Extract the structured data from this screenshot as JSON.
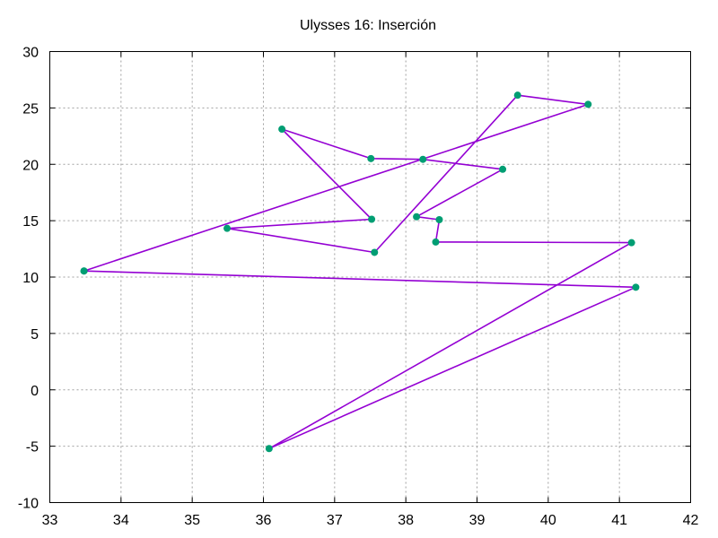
{
  "chart_data": {
    "type": "line",
    "title": "Ulysses 16: Inserción",
    "xlabel": "",
    "ylabel": "",
    "xlim": [
      33,
      42
    ],
    "ylim": [
      -10,
      30
    ],
    "xticks": [
      "33",
      "34",
      "35",
      "36",
      "37",
      "38",
      "39",
      "40",
      "41",
      "42"
    ],
    "yticks": [
      "-10",
      "-5",
      "0",
      "5",
      "10",
      "15",
      "20",
      "25",
      "30"
    ],
    "grid": true,
    "line_color": "#9400d3",
    "marker_color": "#009e73",
    "series": [
      {
        "x": [
          33.48,
          41.23,
          36.08,
          41.17,
          38.42,
          38.47,
          38.15,
          39.36,
          38.24,
          37.51,
          36.26,
          37.52,
          35.49,
          37.56,
          39.57,
          40.56,
          33.48
        ],
        "y": [
          10.54,
          9.1,
          -5.21,
          13.05,
          13.11,
          15.09,
          15.35,
          19.56,
          20.44,
          20.51,
          23.12,
          15.13,
          14.32,
          12.19,
          26.13,
          25.32,
          10.54
        ]
      }
    ]
  }
}
